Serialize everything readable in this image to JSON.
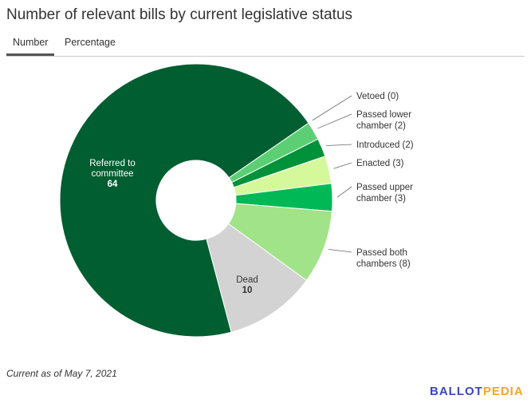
{
  "title": "Number of relevant bills by current legislative status",
  "tabs": [
    {
      "label": "Number",
      "active": true
    },
    {
      "label": "Percentage",
      "active": false
    }
  ],
  "note": "Current as of May 7, 2021",
  "logo": {
    "part1": "BALLOT",
    "part2": "PEDIA"
  },
  "chart_data": {
    "type": "pie",
    "donut": true,
    "title": "Number of relevant bills by current legislative status",
    "slices": [
      {
        "label": "Vetoed",
        "value": 0,
        "color": "#004d26",
        "label_lines": [
          "Vetoed (0)"
        ]
      },
      {
        "label": "Passed lower chamber",
        "value": 2,
        "color": "#5ccf74",
        "label_lines": [
          "Passed lower",
          "chamber (2)"
        ]
      },
      {
        "label": "Introduced",
        "value": 2,
        "color": "#00913b",
        "label_lines": [
          "Introduced (2)"
        ]
      },
      {
        "label": "Enacted",
        "value": 3,
        "color": "#d5f89b",
        "label_lines": [
          "Enacted (3)"
        ]
      },
      {
        "label": "Passed upper chamber",
        "value": 3,
        "color": "#00b856",
        "label_lines": [
          "Passed upper",
          "chamber (3)"
        ]
      },
      {
        "label": "Passed both chambers",
        "value": 8,
        "color": "#a0e388",
        "label_lines": [
          "Passed both",
          "chambers (8)"
        ]
      },
      {
        "label": "Dead",
        "value": 10,
        "color": "#d3d3d3",
        "label_lines": [
          "Dead",
          "10"
        ]
      },
      {
        "label": "Referred to committee",
        "value": 64,
        "color": "#005e31",
        "label_lines": [
          "Referred to",
          "committee",
          "64"
        ]
      }
    ]
  }
}
